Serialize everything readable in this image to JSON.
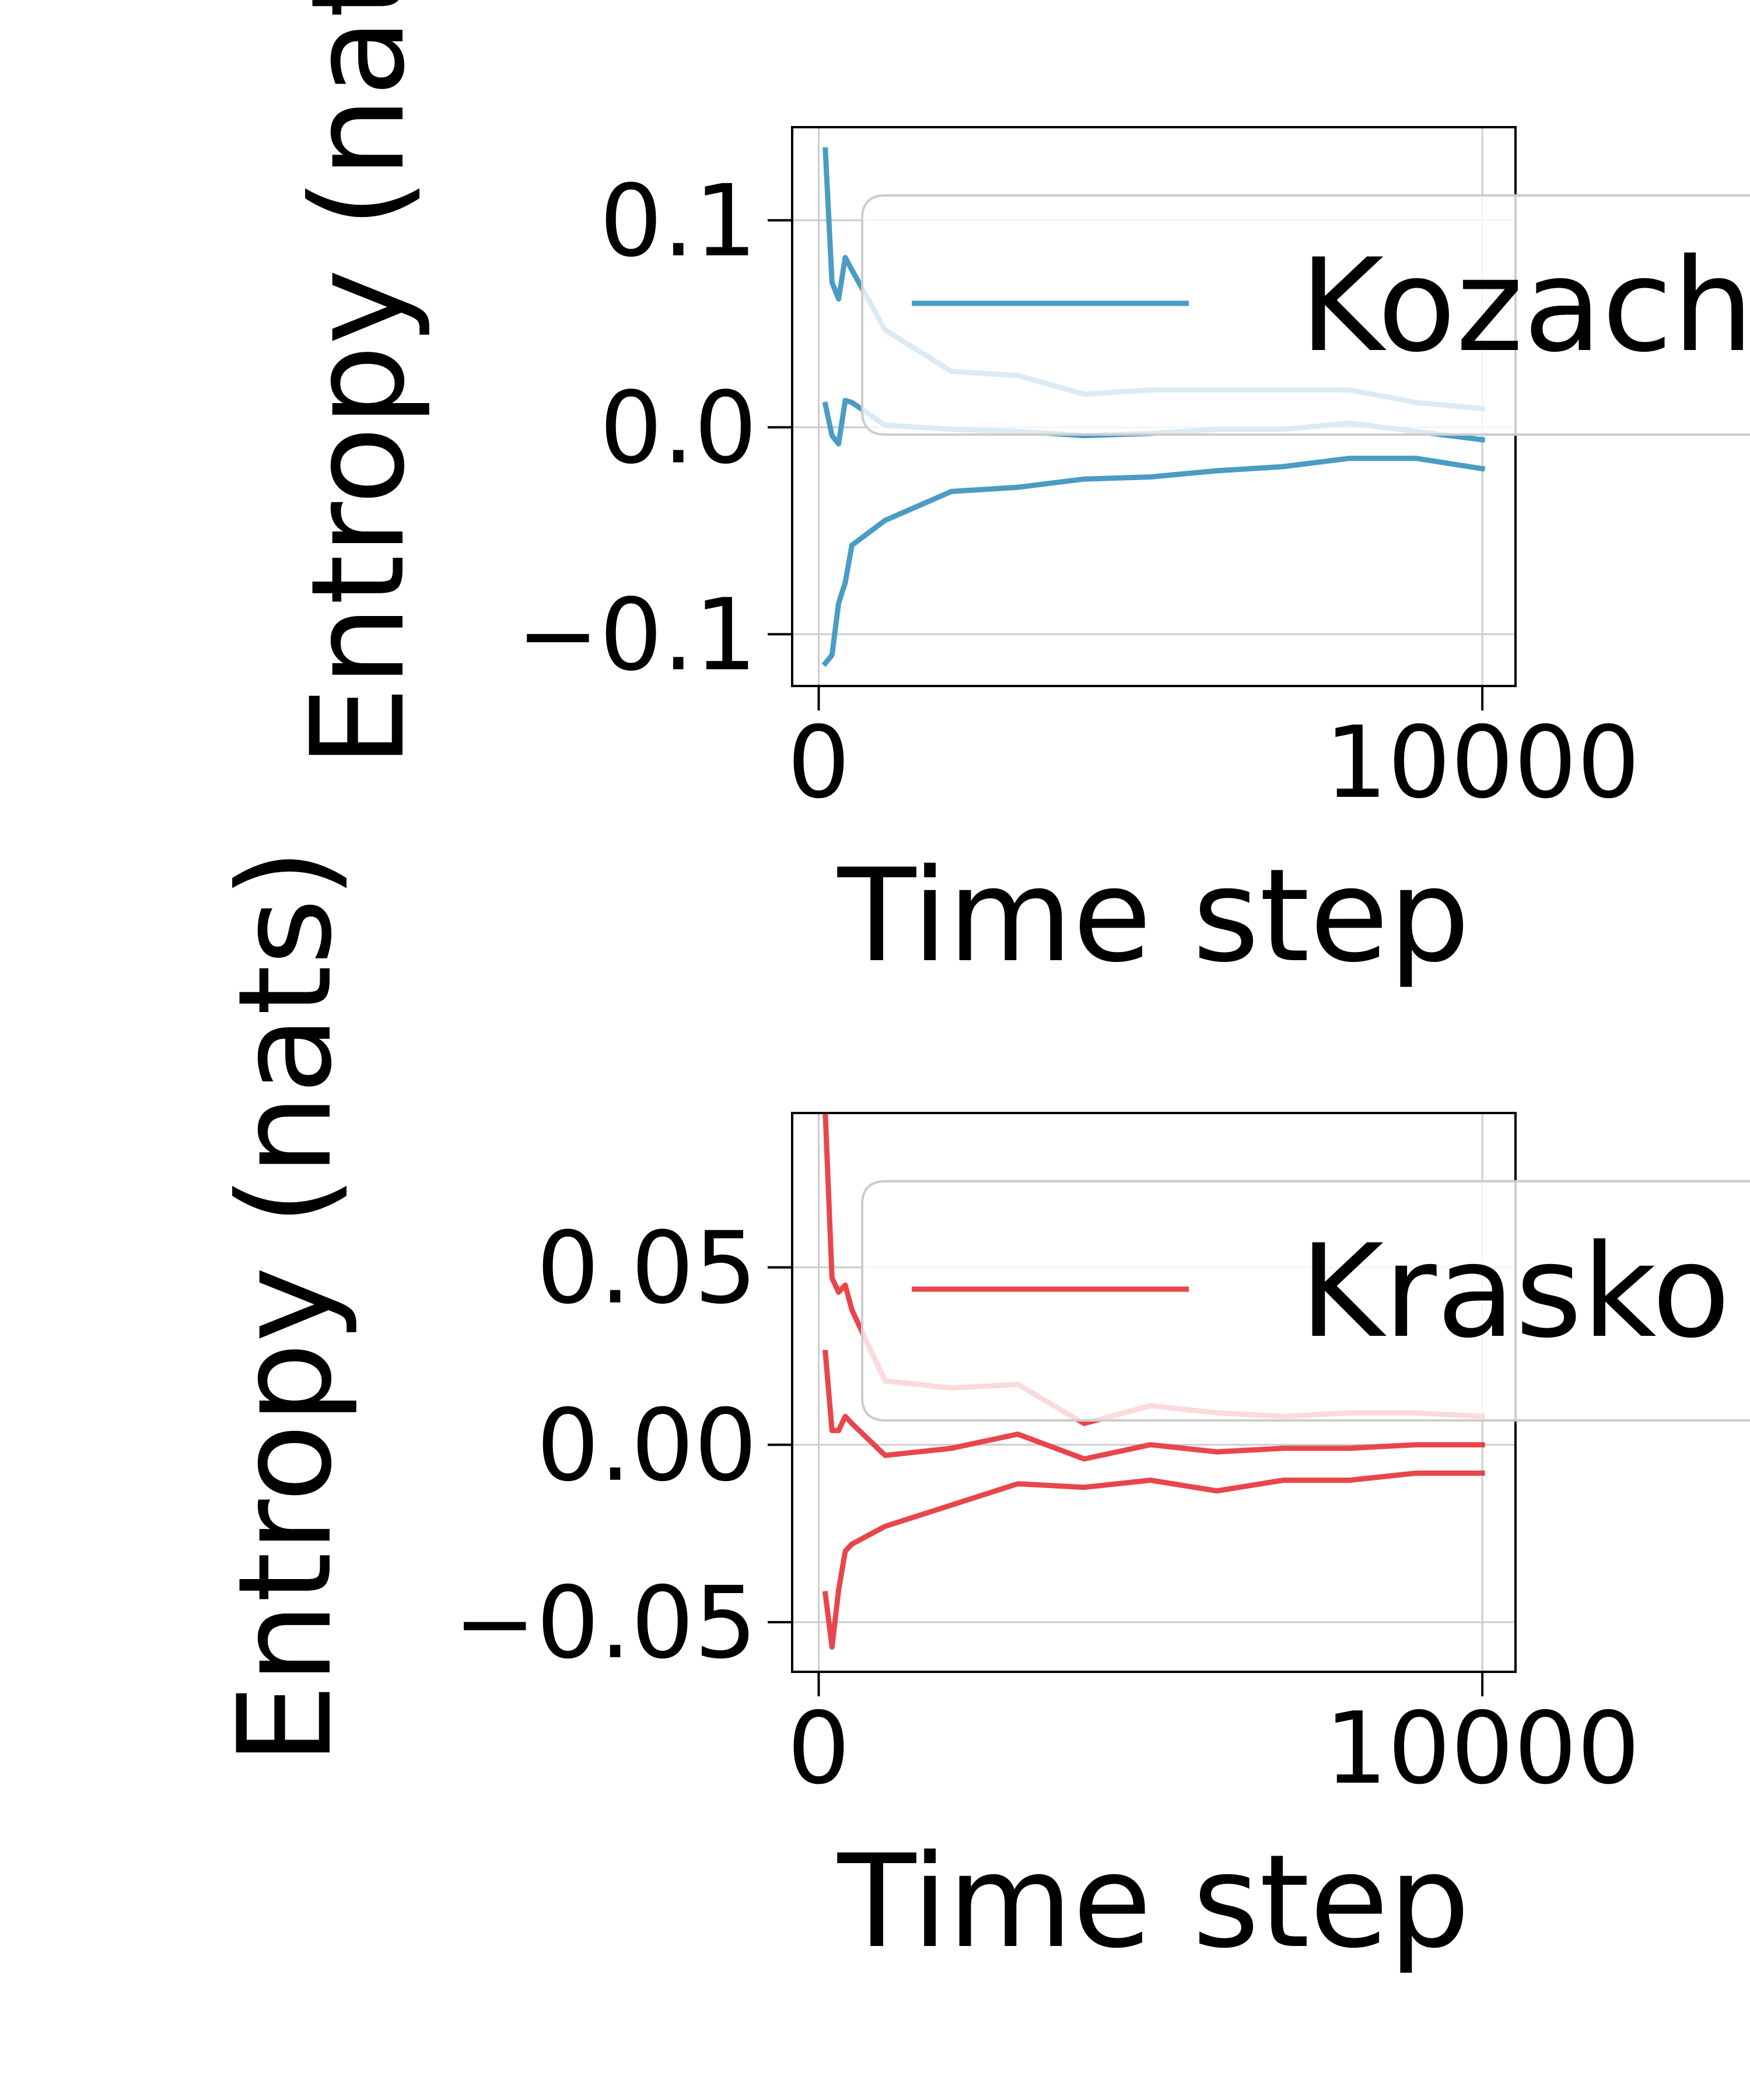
{
  "chart_data": [
    {
      "type": "line",
      "xlabel": "Time step",
      "ylabel": "Entropy (nats)",
      "xlim": [
        -400,
        10500
      ],
      "ylim": [
        -0.125,
        0.145
      ],
      "xticks": [
        0,
        10000
      ],
      "xtick_labels": [
        "0",
        "10000"
      ],
      "yticks": [
        -0.1,
        0.0,
        0.1
      ],
      "ytick_labels": [
        "−0.1",
        "0.0",
        "0.1"
      ],
      "grid": true,
      "legend_position": "upper right",
      "legend_entries": [
        "Kozach"
      ],
      "color": "#4a9cc4",
      "x": [
        100,
        200,
        300,
        400,
        500,
        1000,
        2000,
        3000,
        4000,
        5000,
        6000,
        7000,
        8000,
        9000,
        10000
      ],
      "series": [
        {
          "values": [
            0.134,
            0.07,
            0.062,
            0.082,
            0.076,
            0.047,
            0.027,
            0.025,
            0.016,
            0.018,
            0.018,
            0.018,
            0.018,
            0.012,
            0.009
          ]
        },
        {
          "values": [
            0.011,
            -0.004,
            -0.008,
            0.013,
            0.012,
            0.001,
            -0.001,
            -0.002,
            -0.004,
            -0.003,
            -0.001,
            -0.001,
            0.002,
            -0.002,
            -0.006
          ]
        },
        {
          "values": [
            -0.114,
            -0.11,
            -0.085,
            -0.075,
            -0.057,
            -0.045,
            -0.031,
            -0.029,
            -0.025,
            -0.024,
            -0.021,
            -0.019,
            -0.015,
            -0.015,
            -0.02
          ]
        }
      ]
    },
    {
      "type": "line",
      "xlabel": "Time step",
      "ylabel": "Entropy (nats)",
      "xlim": [
        -400,
        10500
      ],
      "ylim": [
        -0.064,
        0.0935
      ],
      "xticks": [
        0,
        10000
      ],
      "xtick_labels": [
        "0",
        "10000"
      ],
      "yticks": [
        -0.05,
        0.0,
        0.05
      ],
      "ytick_labels": [
        "−0.05",
        "0.00",
        "0.05"
      ],
      "grid": true,
      "legend_position": "upper right",
      "legend_entries": [
        "Krasko"
      ],
      "color": "#e8464a",
      "x": [
        100,
        200,
        300,
        400,
        500,
        1000,
        2000,
        3000,
        4000,
        5000,
        6000,
        7000,
        8000,
        9000,
        10000
      ],
      "series": [
        {
          "values": [
            0.093,
            0.047,
            0.043,
            0.045,
            0.038,
            0.018,
            0.016,
            0.017,
            0.006,
            0.011,
            0.009,
            0.008,
            0.009,
            0.009,
            0.008
          ]
        },
        {
          "values": [
            0.026,
            0.004,
            0.004,
            0.008,
            0.006,
            -0.003,
            -0.001,
            0.003,
            -0.004,
            0.0,
            -0.002,
            -0.001,
            -0.001,
            0.0,
            0.0
          ]
        },
        {
          "values": [
            -0.042,
            -0.057,
            -0.041,
            -0.03,
            -0.028,
            -0.023,
            -0.017,
            -0.011,
            -0.012,
            -0.01,
            -0.013,
            -0.01,
            -0.01,
            -0.008,
            -0.008
          ]
        }
      ]
    }
  ]
}
